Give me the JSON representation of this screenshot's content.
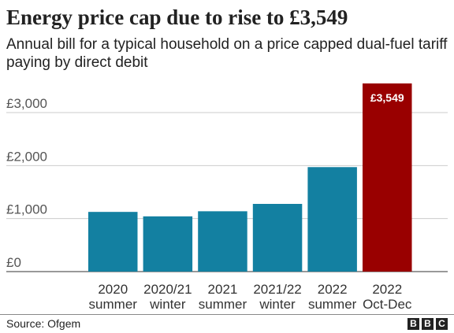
{
  "chart_data": {
    "type": "bar",
    "title": "Energy price cap due to rise to £3,549",
    "subtitle": "Annual bill for a typical household on a price capped dual-fuel tariff paying by direct debit",
    "categories": [
      [
        "2020",
        "summer"
      ],
      [
        "2020/21",
        "winter"
      ],
      [
        "2021",
        "summer"
      ],
      [
        "2021/22",
        "winter"
      ],
      [
        "2022",
        "summer"
      ],
      [
        "2022",
        "Oct-Dec"
      ]
    ],
    "values": [
      1126,
      1042,
      1138,
      1277,
      1971,
      3549
    ],
    "data_labels": [
      "",
      "",
      "",
      "",
      "",
      "£3,549"
    ],
    "y_ticks": [
      0,
      1000,
      2000,
      3000
    ],
    "y_tick_labels": [
      "£0",
      "£1,000",
      "£2,000",
      "£3,000"
    ],
    "ylim": [
      0,
      3549
    ],
    "grid": true,
    "colors": {
      "bar": "#1380a1",
      "highlight": "#990000",
      "grid": "#cbcbcb",
      "text": "#222222"
    },
    "highlight_index": 5
  },
  "footer": {
    "source": "Source: Ofgem",
    "logo_letters": [
      "B",
      "B",
      "C"
    ]
  }
}
